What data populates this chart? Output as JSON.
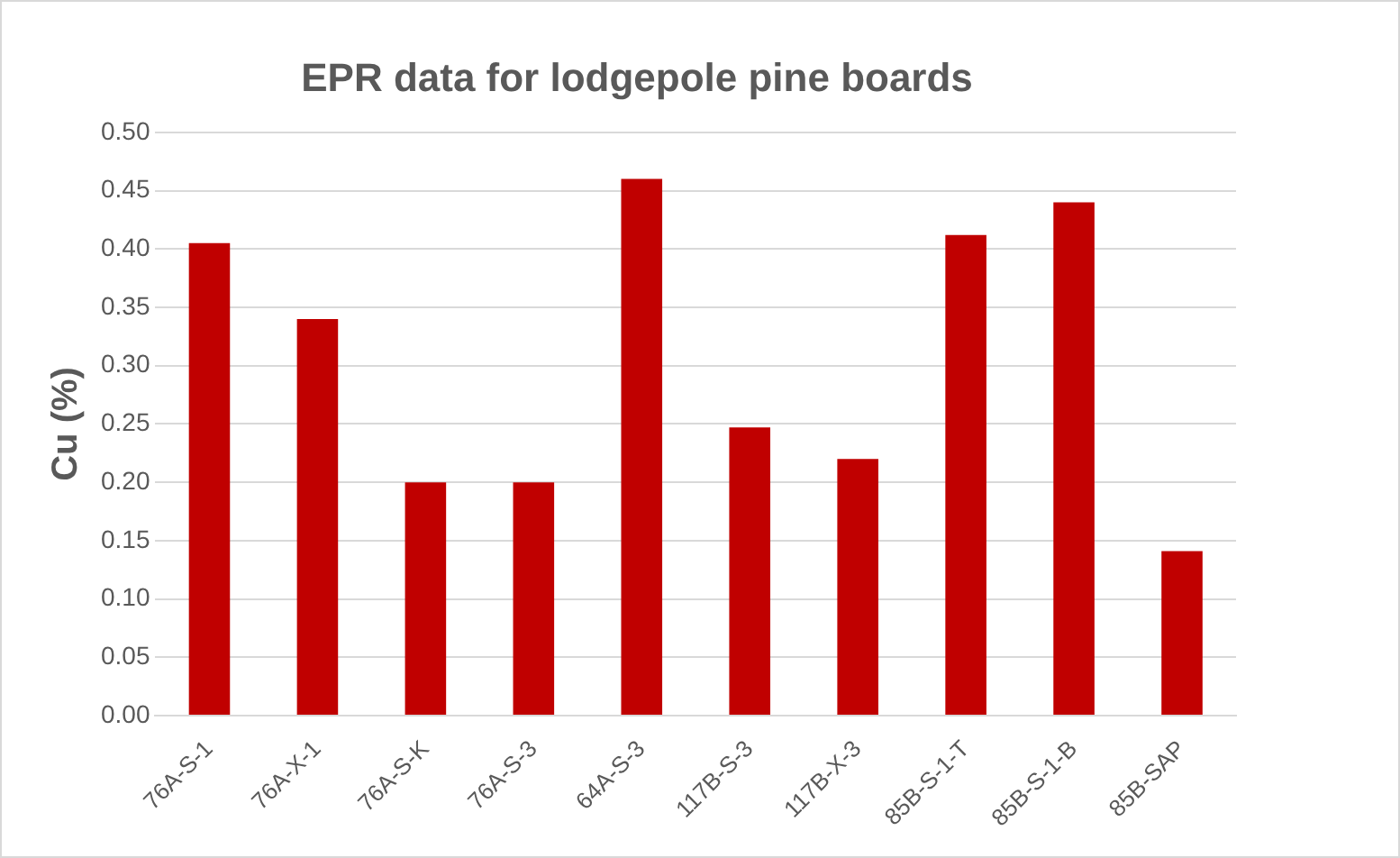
{
  "chart_data": {
    "type": "bar",
    "title": "EPR data for lodgepole pine boards",
    "ylabel": "Cu (%)",
    "categories": [
      "76A-S-1",
      "76A-X-1",
      "76A-S-K",
      "76A-S-3",
      "64A-S-3",
      "117B-S-3",
      "117B-X-3",
      "85B-S-1-T",
      "85B-S-1-B",
      "85B-SAP"
    ],
    "values": [
      0.405,
      0.34,
      0.2,
      0.2,
      0.46,
      0.247,
      0.22,
      0.412,
      0.44,
      0.141
    ],
    "color": "#c00000",
    "ylim": [
      0,
      0.5
    ],
    "yticks": [
      {
        "value": 0,
        "label": "0.00"
      },
      {
        "value": 0.05,
        "label": "0.05"
      },
      {
        "value": 0.1,
        "label": "0.10"
      },
      {
        "value": 0.15,
        "label": "0.15"
      },
      {
        "value": 0.2,
        "label": "0.20"
      },
      {
        "value": 0.25,
        "label": "0.25"
      },
      {
        "value": 0.3,
        "label": "0.30"
      },
      {
        "value": 0.35,
        "label": "0.35"
      },
      {
        "value": 0.4,
        "label": "0.40"
      },
      {
        "value": 0.45,
        "label": "0.45"
      },
      {
        "value": 0.5,
        "label": "0.50"
      }
    ],
    "grid": "y",
    "legend": false
  }
}
